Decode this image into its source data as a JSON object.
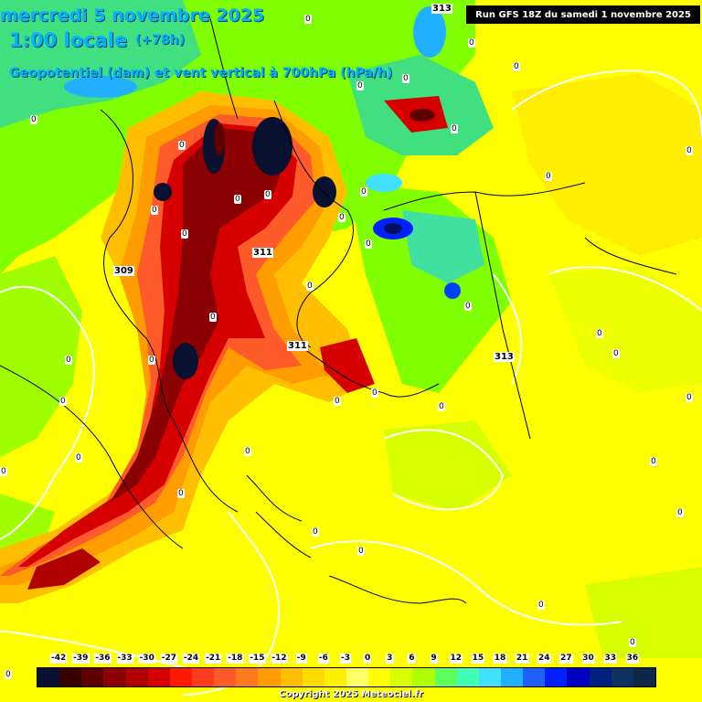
{
  "header": {
    "date_line": "mercredi 5 novembre 2025",
    "time_line": "1:00 locale",
    "lead_line": "(+78h)",
    "param_line": "Geopotentiel (dam) et vent vertical à 700hPa (hPa/h)"
  },
  "run_info": "Run GFS 18Z du samedi 1 novembre 2025",
  "geopotential_labels": [
    "313",
    "309",
    "311",
    "311",
    "313"
  ],
  "zero_labels": [
    "0",
    "0",
    "0",
    "0",
    "0",
    "0",
    "0",
    "0",
    "0",
    "0",
    "0",
    "0",
    "0",
    "0",
    "0",
    "0",
    "0",
    "0",
    "0",
    "0",
    "0",
    "0",
    "0",
    "0",
    "0",
    "0",
    "0",
    "0",
    "0",
    "0",
    "0",
    "0",
    "0",
    "0",
    "0",
    "0",
    "0",
    "0",
    "0",
    "0"
  ],
  "legend": {
    "ticks": [
      "-42",
      "-39",
      "-36",
      "-33",
      "-30",
      "-27",
      "-24",
      "-21",
      "-18",
      "-15",
      "-12",
      "-9",
      "-6",
      "-3",
      "0",
      "3",
      "6",
      "9",
      "12",
      "15",
      "18",
      "21",
      "24",
      "27",
      "30",
      "33",
      "36"
    ],
    "colors": [
      "#0a1030",
      "#3a0000",
      "#5e0000",
      "#8b0000",
      "#b00000",
      "#d60000",
      "#ff1a00",
      "#ff3c1e",
      "#ff5a2a",
      "#ff7a1e",
      "#ff9c00",
      "#ffbe00",
      "#ffdc00",
      "#fff000",
      "#ffff66",
      "#ffff00",
      "#d8ff00",
      "#b0ff00",
      "#60ff60",
      "#40ffb0",
      "#40e0ff",
      "#20b0ff",
      "#2060ff",
      "#0020ff",
      "#0000c0",
      "#002080",
      "#103060",
      "#102848"
    ]
  },
  "copyright": "Copyright 2025 Meteociel.fr"
}
